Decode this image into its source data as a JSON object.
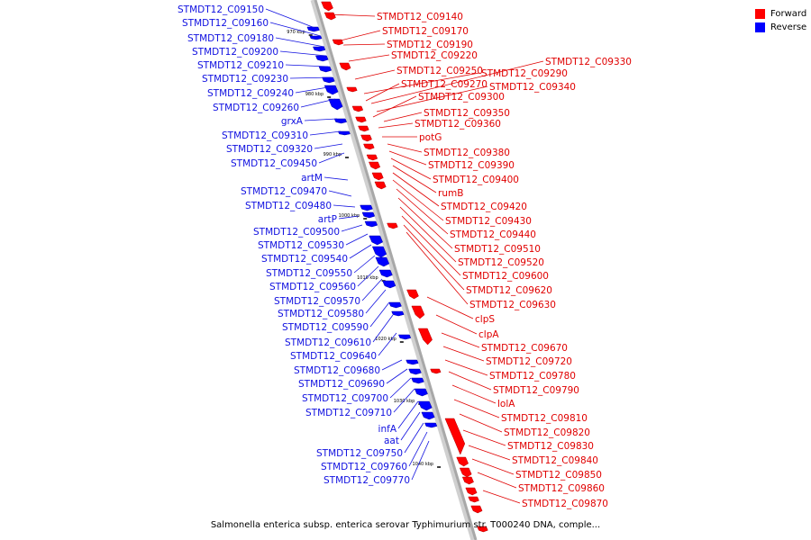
{
  "legend": {
    "items": [
      {
        "label": "Forward",
        "color": "#ff0000"
      },
      {
        "label": "Reverse",
        "color": "#0000ff"
      }
    ]
  },
  "caption": "Salmonella enterica subsp. enterica serovar Typhimurium str. T000240 DNA, comple...",
  "colors": {
    "forward": "#ff0000",
    "reverse": "#0000ff",
    "backbone": "#a8a8a8",
    "label_forward": "#e00000",
    "label_reverse": "#1010e0"
  },
  "scale_ticks": [
    "970 kbp",
    "980 kbp",
    "990 kbp",
    "1000 kbp",
    "1010 kbp",
    "1020 kbp",
    "1030 kbp",
    "1040 kbp"
  ],
  "forward_labels": [
    "STMDT12_C09140",
    "STMDT12_C09170",
    "STMDT12_C09190",
    "STMDT12_C09220",
    "STMDT12_C09250",
    "STMDT12_C09290",
    "STMDT12_C09330",
    "STMDT12_C09270",
    "STMDT12_C09340",
    "STMDT12_C09300",
    "STMDT12_C09350",
    "STMDT12_C09360",
    "potG",
    "STMDT12_C09380",
    "STMDT12_C09390",
    "STMDT12_C09400",
    "rumB",
    "STMDT12_C09420",
    "STMDT12_C09430",
    "STMDT12_C09440",
    "STMDT12_C09510",
    "STMDT12_C09520",
    "STMDT12_C09600",
    "STMDT12_C09620",
    "STMDT12_C09630",
    "clpS",
    "clpA",
    "STMDT12_C09670",
    "STMDT12_C09720",
    "STMDT12_C09780",
    "STMDT12_C09790",
    "lolA",
    "STMDT12_C09810",
    "STMDT12_C09820",
    "STMDT12_C09830",
    "STMDT12_C09840",
    "STMDT12_C09850",
    "STMDT12_C09860",
    "STMDT12_C09870"
  ],
  "reverse_labels": [
    "STMDT12_C09150",
    "STMDT12_C09160",
    "STMDT12_C09180",
    "STMDT12_C09200",
    "STMDT12_C09210",
    "STMDT12_C09230",
    "STMDT12_C09240",
    "STMDT12_C09260",
    "grxA",
    "STMDT12_C09310",
    "STMDT12_C09320",
    "STMDT12_C09450",
    "artM",
    "STMDT12_C09470",
    "STMDT12_C09480",
    "artP",
    "STMDT12_C09500",
    "STMDT12_C09530",
    "STMDT12_C09540",
    "STMDT12_C09550",
    "STMDT12_C09560",
    "STMDT12_C09570",
    "STMDT12_C09580",
    "STMDT12_C09590",
    "STMDT12_C09610",
    "STMDT12_C09640",
    "STMDT12_C09680",
    "STMDT12_C09690",
    "STMDT12_C09700",
    "STMDT12_C09710",
    "infA",
    "aat",
    "STMDT12_C09750",
    "STMDT12_C09760",
    "STMDT12_C09770"
  ]
}
